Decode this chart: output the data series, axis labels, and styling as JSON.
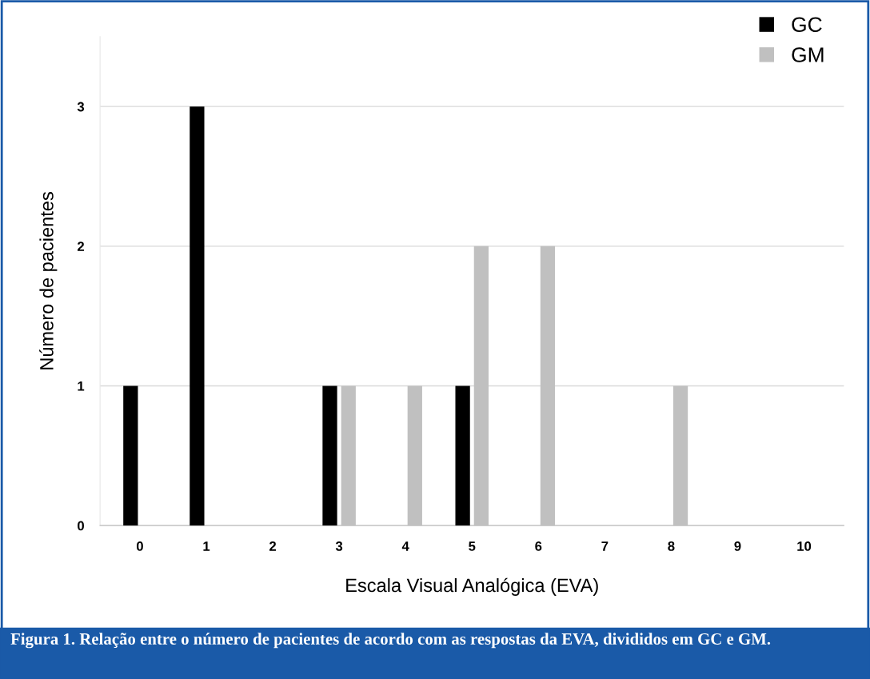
{
  "chart_data": {
    "type": "bar",
    "xlabel": "Escala Visual Analógica (EVA)",
    "ylabel": "Número de pacientes",
    "categories": [
      "0",
      "1",
      "2",
      "3",
      "4",
      "5",
      "6",
      "7",
      "8",
      "9",
      "10"
    ],
    "series": [
      {
        "name": "GC",
        "color": "#000000",
        "values": [
          1,
          3,
          0,
          1,
          0,
          1,
          0,
          0,
          0,
          0,
          0
        ]
      },
      {
        "name": "GM",
        "color": "#c0c0c0",
        "values": [
          0,
          0,
          0,
          1,
          1,
          2,
          2,
          0,
          1,
          0,
          0
        ]
      }
    ],
    "ylim": [
      0,
      3.5
    ],
    "yticks": [
      0,
      1,
      2,
      3
    ],
    "grid": "y",
    "legend": "top right",
    "annotations": [
      "Figura 1. Relação entre o número de pacientes de acordo com as respostas da EVA, divididos em GC e GM."
    ]
  }
}
